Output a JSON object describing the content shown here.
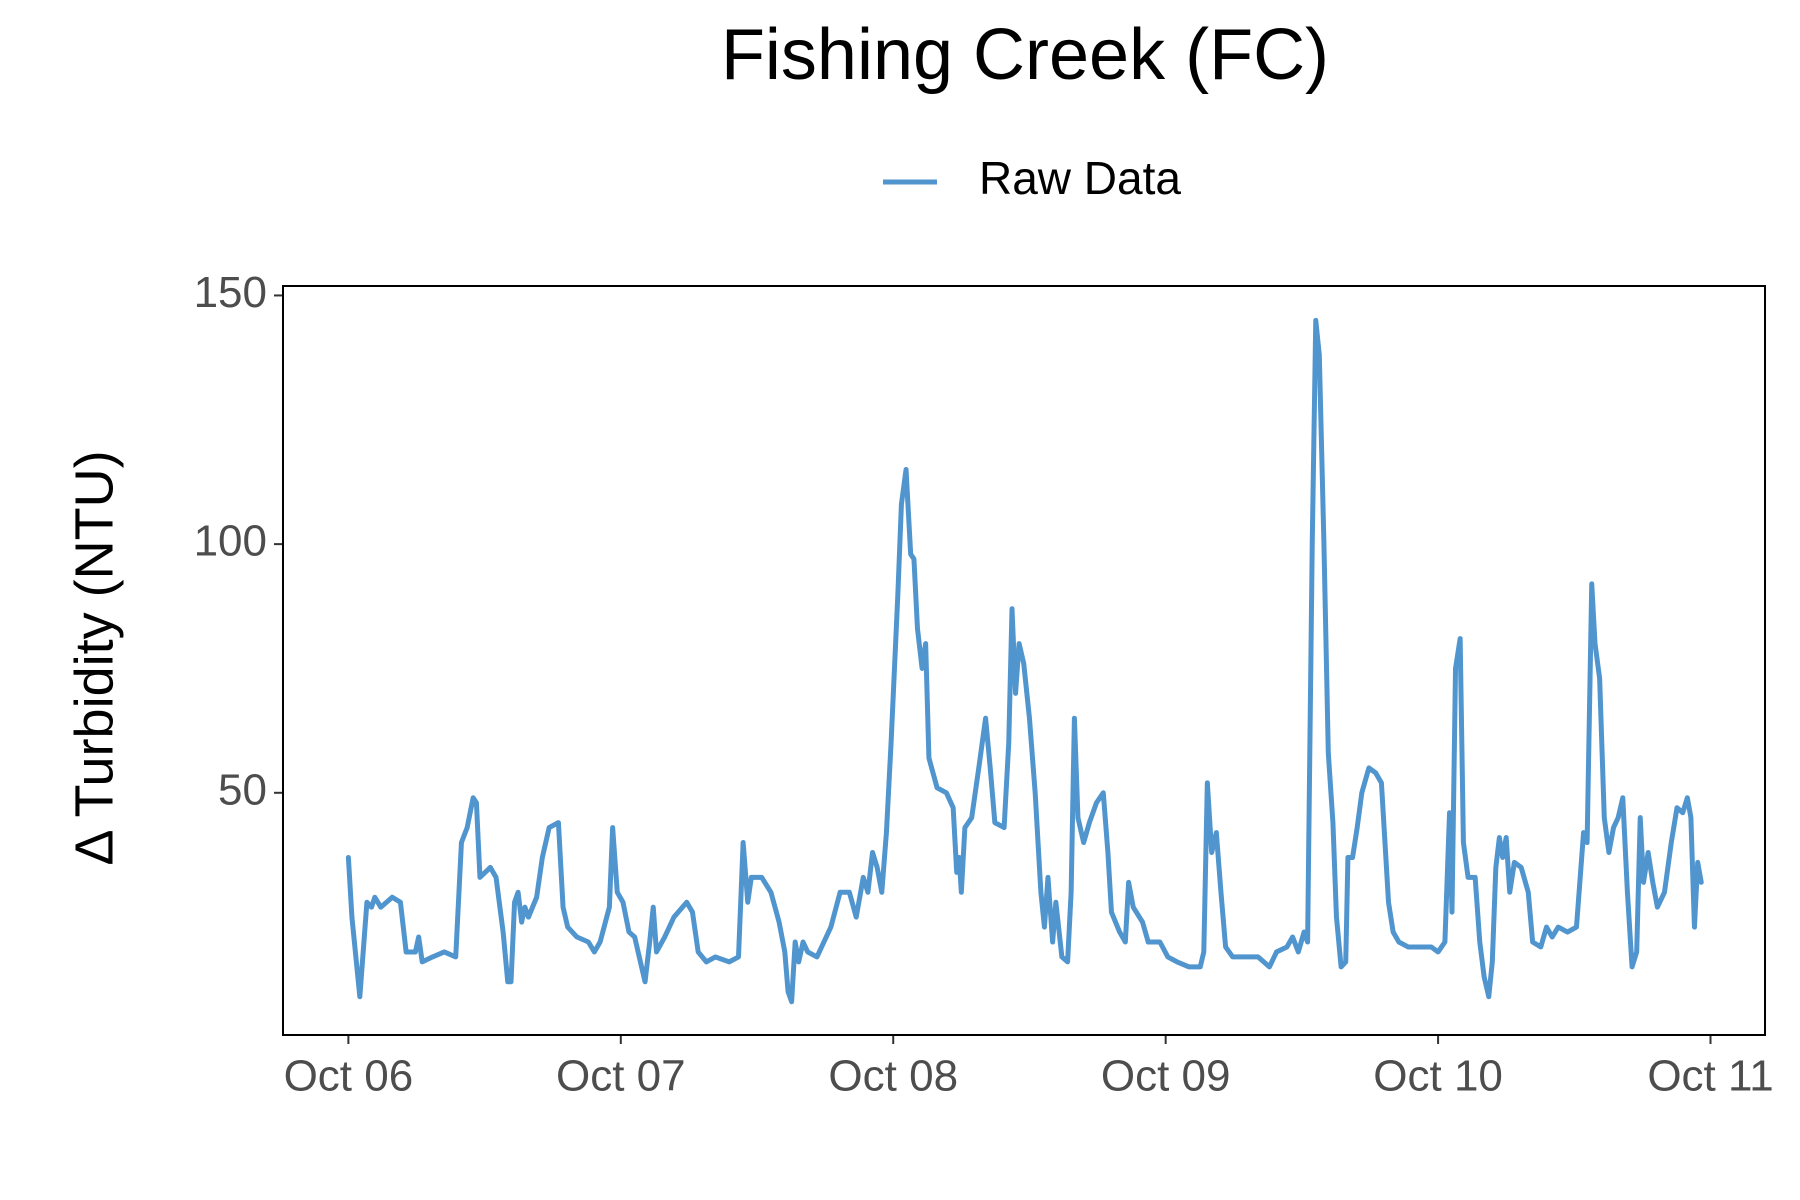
{
  "chart_data": {
    "type": "line",
    "title": "Fishing Creek (FC)",
    "y_label": "Δ Turbidity (NTU)",
    "legend_position": "top",
    "xlim": [
      -0.24,
      5.2
    ],
    "xticks": [
      {
        "value": 0,
        "label": "Oct 06"
      },
      {
        "value": 1,
        "label": "Oct 07"
      },
      {
        "value": 2,
        "label": "Oct 08"
      },
      {
        "value": 3,
        "label": "Oct 09"
      },
      {
        "value": 4,
        "label": "Oct 10"
      },
      {
        "value": 5,
        "label": "Oct 11"
      }
    ],
    "ylim": [
      1.3,
      151.9
    ],
    "yticks": [
      50,
      100,
      150
    ],
    "x": [
      0.0,
      0.013,
      0.042,
      0.068,
      0.085,
      0.097,
      0.119,
      0.161,
      0.191,
      0.212,
      0.246,
      0.258,
      0.271,
      0.309,
      0.352,
      0.394,
      0.415,
      0.436,
      0.458,
      0.47,
      0.483,
      0.521,
      0.542,
      0.568,
      0.585,
      0.597,
      0.61,
      0.623,
      0.636,
      0.648,
      0.661,
      0.691,
      0.712,
      0.737,
      0.771,
      0.788,
      0.805,
      0.839,
      0.881,
      0.903,
      0.924,
      0.958,
      0.97,
      0.987,
      1.008,
      1.03,
      1.051,
      1.072,
      1.089,
      1.106,
      1.119,
      1.131,
      1.161,
      1.195,
      1.242,
      1.263,
      1.284,
      1.314,
      1.347,
      1.398,
      1.432,
      1.449,
      1.466,
      1.479,
      1.517,
      1.551,
      1.581,
      1.602,
      1.614,
      1.627,
      1.64,
      1.653,
      1.669,
      1.686,
      1.72,
      1.771,
      1.805,
      1.839,
      1.864,
      1.89,
      1.907,
      1.924,
      1.941,
      1.958,
      1.975,
      1.992,
      2.017,
      2.03,
      2.047,
      2.064,
      2.076,
      2.089,
      2.106,
      2.119,
      2.131,
      2.161,
      2.195,
      2.22,
      2.233,
      2.242,
      2.25,
      2.263,
      2.288,
      2.314,
      2.339,
      2.356,
      2.373,
      2.407,
      2.424,
      2.436,
      2.449,
      2.462,
      2.479,
      2.5,
      2.521,
      2.542,
      2.555,
      2.568,
      2.585,
      2.597,
      2.619,
      2.64,
      2.653,
      2.665,
      2.678,
      2.699,
      2.72,
      2.746,
      2.771,
      2.788,
      2.801,
      2.831,
      2.852,
      2.864,
      2.881,
      2.915,
      2.936,
      2.979,
      3.008,
      3.042,
      3.085,
      3.127,
      3.14,
      3.153,
      3.169,
      3.186,
      3.203,
      3.22,
      3.246,
      3.297,
      3.339,
      3.381,
      3.407,
      3.445,
      3.466,
      3.487,
      3.508,
      3.521,
      3.538,
      3.551,
      3.564,
      3.581,
      3.597,
      3.614,
      3.627,
      3.644,
      3.661,
      3.669,
      3.686,
      3.703,
      3.72,
      3.746,
      3.771,
      3.792,
      3.805,
      3.818,
      3.835,
      3.856,
      3.89,
      3.932,
      3.975,
      4.0,
      4.025,
      4.042,
      4.051,
      4.064,
      4.081,
      4.093,
      4.11,
      4.136,
      4.153,
      4.169,
      4.186,
      4.199,
      4.212,
      4.225,
      4.237,
      4.25,
      4.263,
      4.28,
      4.305,
      4.331,
      4.347,
      4.377,
      4.398,
      4.419,
      4.441,
      4.475,
      4.508,
      4.534,
      4.547,
      4.564,
      4.576,
      4.593,
      4.61,
      4.627,
      4.644,
      4.661,
      4.678,
      4.695,
      4.712,
      4.729,
      4.742,
      4.754,
      4.771,
      4.788,
      4.805,
      4.831,
      4.856,
      4.877,
      4.898,
      4.915,
      4.928,
      4.941,
      4.953,
      4.966
    ],
    "series": [
      {
        "name": "Raw Data",
        "color": "#5195cf",
        "values": [
          37,
          25,
          9,
          28,
          27,
          29,
          27,
          29,
          28,
          18,
          18,
          21,
          16,
          17,
          18,
          17,
          40,
          43,
          49,
          48,
          33,
          35,
          33,
          22,
          12,
          12,
          28,
          30,
          24,
          27,
          25,
          29,
          37,
          43,
          44,
          27,
          23,
          21,
          20,
          18,
          20,
          27,
          43,
          30,
          28,
          22,
          21,
          16,
          12,
          20,
          27,
          18,
          21,
          25,
          28,
          26,
          18,
          16,
          17,
          16,
          17,
          40,
          28,
          33,
          33,
          30,
          24,
          18,
          10,
          8,
          20,
          16,
          20,
          18,
          17,
          23,
          30,
          30,
          25,
          33,
          30,
          38,
          35,
          30,
          42,
          60,
          90,
          108,
          115,
          98,
          97,
          83,
          75,
          80,
          57,
          51,
          50,
          47,
          34,
          37,
          30,
          43,
          45,
          55,
          65,
          55,
          44,
          43,
          60,
          87,
          70,
          80,
          76,
          65,
          50,
          30,
          23,
          33,
          20,
          28,
          17,
          16,
          30,
          65,
          45,
          40,
          44,
          48,
          50,
          38,
          26,
          22,
          20,
          32,
          27,
          24,
          20,
          20,
          17,
          16,
          15,
          15,
          18,
          52,
          38,
          42,
          30,
          19,
          17,
          17,
          17,
          15,
          18,
          19,
          21,
          18,
          22,
          20,
          100,
          145,
          138,
          100,
          58,
          44,
          25,
          15,
          16,
          37,
          37,
          43,
          50,
          55,
          54,
          52,
          40,
          28,
          22,
          20,
          19,
          19,
          19,
          18,
          20,
          46,
          26,
          75,
          81,
          40,
          33,
          33,
          20,
          13,
          9,
          16,
          35,
          41,
          37,
          41,
          30,
          36,
          35,
          30,
          20,
          19,
          23,
          21,
          23,
          22,
          23,
          42,
          40,
          92,
          80,
          73,
          45,
          38,
          43,
          45,
          49,
          30,
          15,
          18,
          45,
          32,
          38,
          32,
          27,
          30,
          40,
          47,
          46,
          49,
          45,
          23,
          36,
          32
        ]
      }
    ]
  }
}
